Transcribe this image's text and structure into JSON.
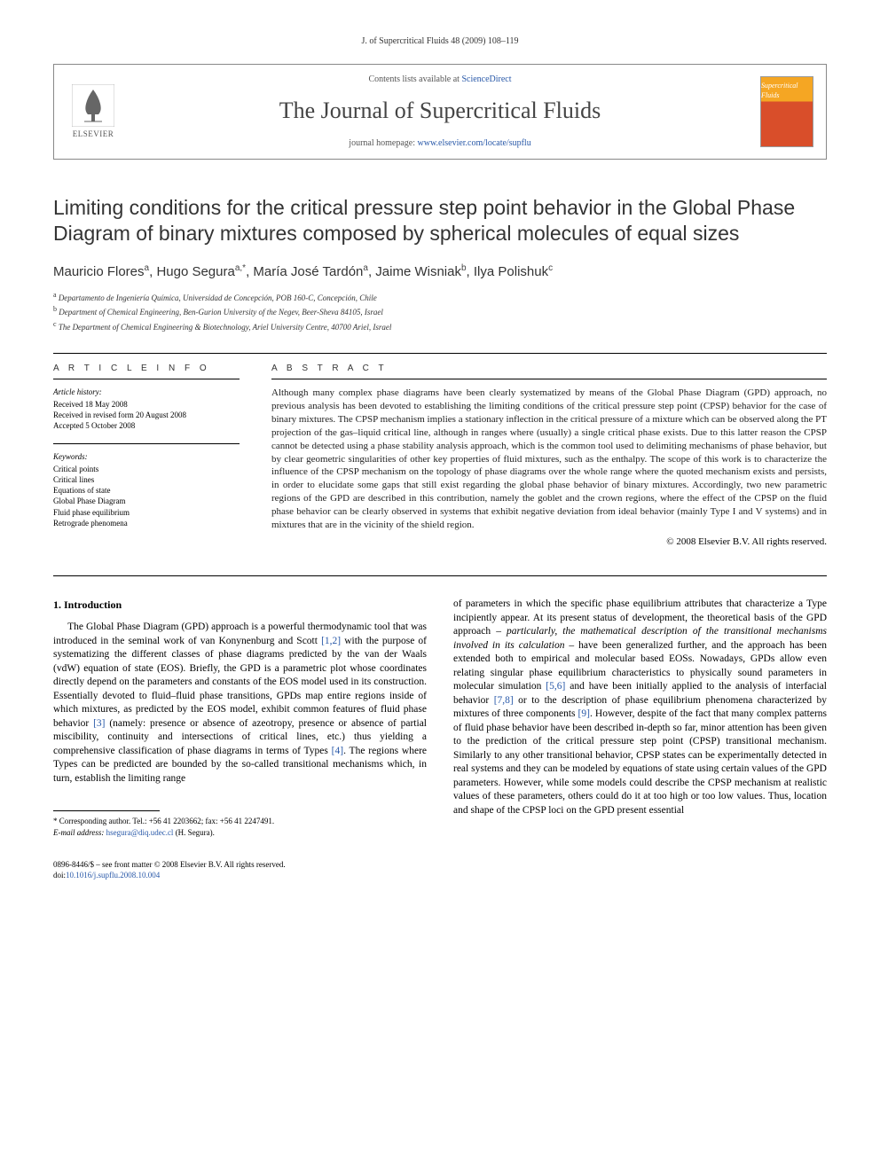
{
  "header": {
    "citation": "J. of Supercritical Fluids 48 (2009) 108–119",
    "contents_prefix": "Contents lists available at ",
    "contents_link": "ScienceDirect",
    "journal_title": "The Journal of Supercritical Fluids",
    "homepage_prefix": "journal homepage: ",
    "homepage_url": "www.elsevier.com/locate/supflu",
    "publisher_name": "ELSEVIER",
    "cover_text": "Supercritical Fluids"
  },
  "article": {
    "title": "Limiting conditions for the critical pressure step point behavior in the Global Phase Diagram of binary mixtures composed by spherical molecules of equal sizes",
    "authors_html": "Mauricio Flores",
    "authors": [
      {
        "name": "Mauricio Flores",
        "sup": "a"
      },
      {
        "name": "Hugo Segura",
        "sup": "a,*"
      },
      {
        "name": "María José Tardón",
        "sup": "a"
      },
      {
        "name": "Jaime Wisniak",
        "sup": "b"
      },
      {
        "name": "Ilya Polishuk",
        "sup": "c"
      }
    ],
    "affiliations": [
      {
        "sup": "a",
        "text": "Departamento de Ingeniería Química, Universidad de Concepción, POB 160-C, Concepción, Chile"
      },
      {
        "sup": "b",
        "text": "Department of Chemical Engineering, Ben-Gurion University of the Negev, Beer-Sheva 84105, Israel"
      },
      {
        "sup": "c",
        "text": "The Department of Chemical Engineering & Biotechnology, Ariel University Centre, 40700 Ariel, Israel"
      }
    ]
  },
  "info": {
    "heading": "A R T I C L E   I N F O",
    "history_label": "Article history:",
    "history": [
      "Received 18 May 2008",
      "Received in revised form 20 August 2008",
      "Accepted 5 October 2008"
    ],
    "keywords_label": "Keywords:",
    "keywords": [
      "Critical points",
      "Critical lines",
      "Equations of state",
      "Global Phase Diagram",
      "Fluid phase equilibrium",
      "Retrograde phenomena"
    ]
  },
  "abstract": {
    "heading": "A B S T R A C T",
    "text": "Although many complex phase diagrams have been clearly systematized by means of the Global Phase Diagram (GPD) approach, no previous analysis has been devoted to establishing the limiting conditions of the critical pressure step point (CPSP) behavior for the case of binary mixtures. The CPSP mechanism implies a stationary inflection in the critical pressure of a mixture which can be observed along the PT projection of the gas–liquid critical line, although in ranges where (usually) a single critical phase exists. Due to this latter reason the CPSP cannot be detected using a phase stability analysis approach, which is the common tool used to delimiting mechanisms of phase behavior, but by clear geometric singularities of other key properties of fluid mixtures, such as the enthalpy. The scope of this work is to characterize the influence of the CPSP mechanism on the topology of phase diagrams over the whole range where the quoted mechanism exists and persists, in order to elucidate some gaps that still exist regarding the global phase behavior of binary mixtures. Accordingly, two new parametric regions of the GPD are described in this contribution, namely the goblet and the crown regions, where the effect of the CPSP on the fluid phase behavior can be clearly observed in systems that exhibit negative deviation from ideal behavior (mainly Type I and V systems) and in mixtures that are in the vicinity of the shield region.",
    "copyright": "© 2008 Elsevier B.V. All rights reserved."
  },
  "body": {
    "intro_heading": "1.  Introduction",
    "col1": "The Global Phase Diagram (GPD) approach is a powerful thermodynamic tool that was introduced in the seminal work of van Konynenburg and Scott [1,2] with the purpose of systematizing the different classes of phase diagrams predicted by the van der Waals (vdW) equation of state (EOS). Briefly, the GPD is a parametric plot whose coordinates directly depend on the parameters and constants of the EOS model used in its construction. Essentially devoted to fluid–fluid phase transitions, GPDs map entire regions inside of which mixtures, as predicted by the EOS model, exhibit common features of fluid phase behavior [3] (namely: presence or absence of azeotropy, presence or absence of partial miscibility, continuity and intersections of critical lines, etc.) thus yielding a comprehensive classification of phase diagrams in terms of Types [4]. The regions where Types can be predicted are bounded by the so-called transitional mechanisms which, in turn, establish the limiting range",
    "col2": "of parameters in which the specific phase equilibrium attributes that characterize a Type incipiently appear. At its present status of development, the theoretical basis of the GPD approach – particularly, the mathematical description of the transitional mechanisms involved in its calculation – have been generalized further, and the approach has been extended both to empirical and molecular based EOSs. Nowadays, GPDs allow even relating singular phase equilibrium characteristics to physically sound parameters in molecular simulation [5,6] and have been initially applied to the analysis of interfacial behavior [7,8] or to the description of phase equilibrium phenomena characterized by mixtures of three components [9]. However, despite of the fact that many complex patterns of fluid phase behavior have been described in-depth so far, minor attention has been given to the prediction of the critical pressure step point (CPSP) transitional mechanism. Similarly to any other transitional behavior, CPSP states can be experimentally detected in real systems and they can be modeled by equations of state using certain values of the GPD parameters. However, while some models could describe the CPSP mechanism at realistic values of these parameters, others could do it at too high or too low values. Thus, location and shape of the CPSP loci on the GPD present essential",
    "refs_col1": [
      "[1,2]",
      "[3]",
      "[4]"
    ],
    "refs_col2": [
      "[5,6]",
      "[7,8]",
      "[9]"
    ]
  },
  "footnote": {
    "corresponding": "* Corresponding author. Tel.: +56 41 2203662; fax: +56 41 2247491.",
    "email_label": "E-mail address: ",
    "email": "hsegura@diq.udec.cl",
    "email_suffix": " (H. Segura)."
  },
  "footer": {
    "issn_line": "0896-8446/$ – see front matter © 2008 Elsevier B.V. All rights reserved.",
    "doi_prefix": "doi:",
    "doi": "10.1016/j.supflu.2008.10.004"
  },
  "colors": {
    "link": "#2858a8",
    "text": "#000000",
    "heading_gray": "#333333"
  }
}
